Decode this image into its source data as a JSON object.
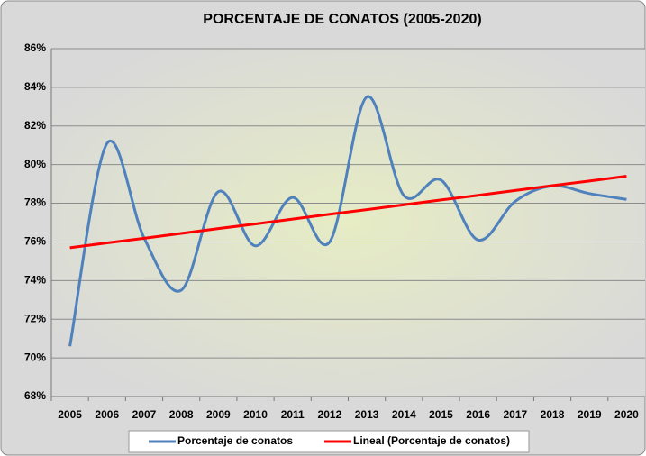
{
  "chart_data": {
    "type": "line",
    "title": "PORCENTAJE DE CONATOS (2005-2020)",
    "categories": [
      "2005",
      "2006",
      "2007",
      "2008",
      "2009",
      "2010",
      "2011",
      "2012",
      "2013",
      "2014",
      "2015",
      "2016",
      "2017",
      "2018",
      "2019",
      "2020"
    ],
    "series": [
      {
        "name": "Porcentaje de conatos",
        "color": "#4f81bd",
        "smooth": true,
        "values": [
          70.6,
          81.1,
          76.2,
          73.5,
          78.6,
          75.8,
          78.3,
          76.0,
          83.5,
          78.4,
          79.2,
          76.1,
          78.1,
          78.9,
          78.5,
          78.2
        ]
      },
      {
        "name": "Lineal (Porcentaje de conatos)",
        "color": "#ff0000",
        "smooth": false,
        "values": [
          75.7,
          75.95,
          76.19,
          76.44,
          76.69,
          76.93,
          77.18,
          77.43,
          77.67,
          77.92,
          78.17,
          78.41,
          78.66,
          78.91,
          79.15,
          79.4
        ]
      }
    ],
    "ylim": [
      68,
      86
    ],
    "yticks": [
      {
        "value": 68,
        "label": "68%"
      },
      {
        "value": 70,
        "label": "70%"
      },
      {
        "value": 72,
        "label": "72%"
      },
      {
        "value": 74,
        "label": "74%"
      },
      {
        "value": 76,
        "label": "76%"
      },
      {
        "value": 78,
        "label": "78%"
      },
      {
        "value": 80,
        "label": "80%"
      },
      {
        "value": 82,
        "label": "82%"
      },
      {
        "value": 84,
        "label": "84%"
      },
      {
        "value": 86,
        "label": "86%"
      }
    ],
    "grid": true,
    "legend": "bottom"
  }
}
